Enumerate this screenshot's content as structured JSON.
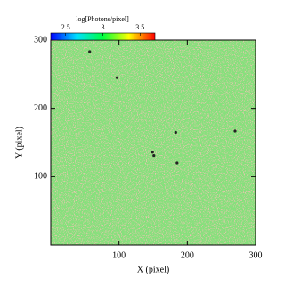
{
  "chart_data": {
    "type": "image",
    "xlabel": "X (pixel)",
    "ylabel": "Y (pixel)",
    "xlim": [
      0,
      300
    ],
    "ylim": [
      0,
      300
    ],
    "xticks": [
      100,
      200,
      300
    ],
    "yticks": [
      100,
      200,
      300
    ],
    "background": "#86e07c",
    "colorbar": {
      "label": "log[Photons/pixel]",
      "lim": [
        2.3,
        3.7
      ],
      "ticks": [
        2.5,
        3,
        3.5
      ],
      "colors": [
        "#0000ff",
        "#00e0ff",
        "#00ff40",
        "#ffff00",
        "#ff0000"
      ]
    },
    "sources": {
      "x": [
        57,
        97,
        183,
        149,
        151,
        270,
        185
      ],
      "y": [
        283,
        245,
        165,
        136,
        131,
        167,
        120
      ],
      "color": "#222222"
    }
  }
}
